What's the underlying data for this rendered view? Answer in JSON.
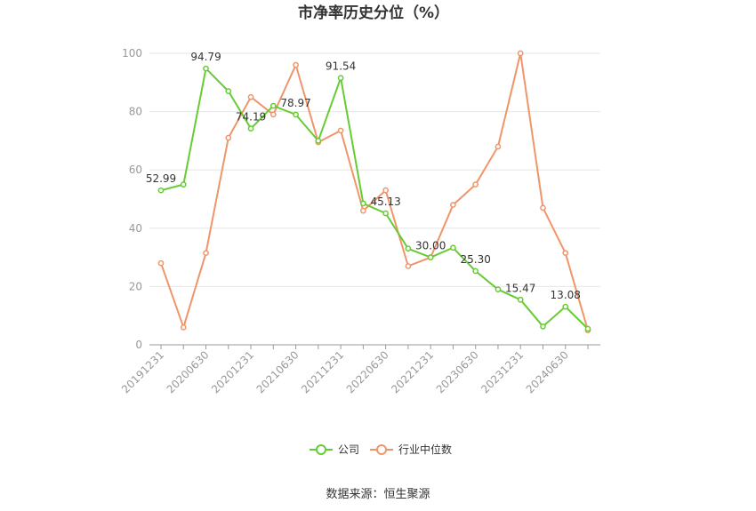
{
  "chart_data": {
    "type": "line",
    "title": "市净率历史分位（%）",
    "source_text": "数据来源：恒生聚源",
    "ylim": [
      0,
      100
    ],
    "yticks": [
      0,
      20,
      40,
      60,
      80,
      100
    ],
    "xtick_labels": [
      "20191231",
      "20200630",
      "20201231",
      "20210630",
      "20211231",
      "20220630",
      "20221231",
      "20230630",
      "20231231",
      "20240630"
    ],
    "legend_position": "bottom",
    "grid": true,
    "series": [
      {
        "name": "公司",
        "color": "#66cc33",
        "values": [
          52.99,
          55.0,
          94.79,
          87.0,
          74.19,
          82.0,
          78.97,
          70.0,
          91.54,
          48.5,
          45.13,
          33.0,
          30.0,
          33.3,
          25.3,
          19.0,
          15.47,
          6.3,
          13.08,
          5.5
        ],
        "labels": [
          {
            "index": 0,
            "text": "52.99"
          },
          {
            "index": 2,
            "text": "94.79"
          },
          {
            "index": 4,
            "text": "74.19"
          },
          {
            "index": 6,
            "text": "78.97"
          },
          {
            "index": 8,
            "text": "91.54"
          },
          {
            "index": 10,
            "text": "45.13"
          },
          {
            "index": 12,
            "text": "30.00"
          },
          {
            "index": 14,
            "text": "25.30"
          },
          {
            "index": 16,
            "text": "15.47"
          },
          {
            "index": 18,
            "text": "13.08"
          }
        ]
      },
      {
        "name": "行业中位数",
        "color": "#f0956a",
        "values": [
          28.0,
          6.0,
          31.5,
          71.0,
          85.0,
          79.0,
          96.0,
          69.5,
          73.5,
          46.0,
          53.0,
          27.0,
          30.0,
          48.0,
          55.0,
          68.0,
          100.0,
          47.0,
          31.5,
          5.0
        ],
        "labels": []
      }
    ]
  }
}
